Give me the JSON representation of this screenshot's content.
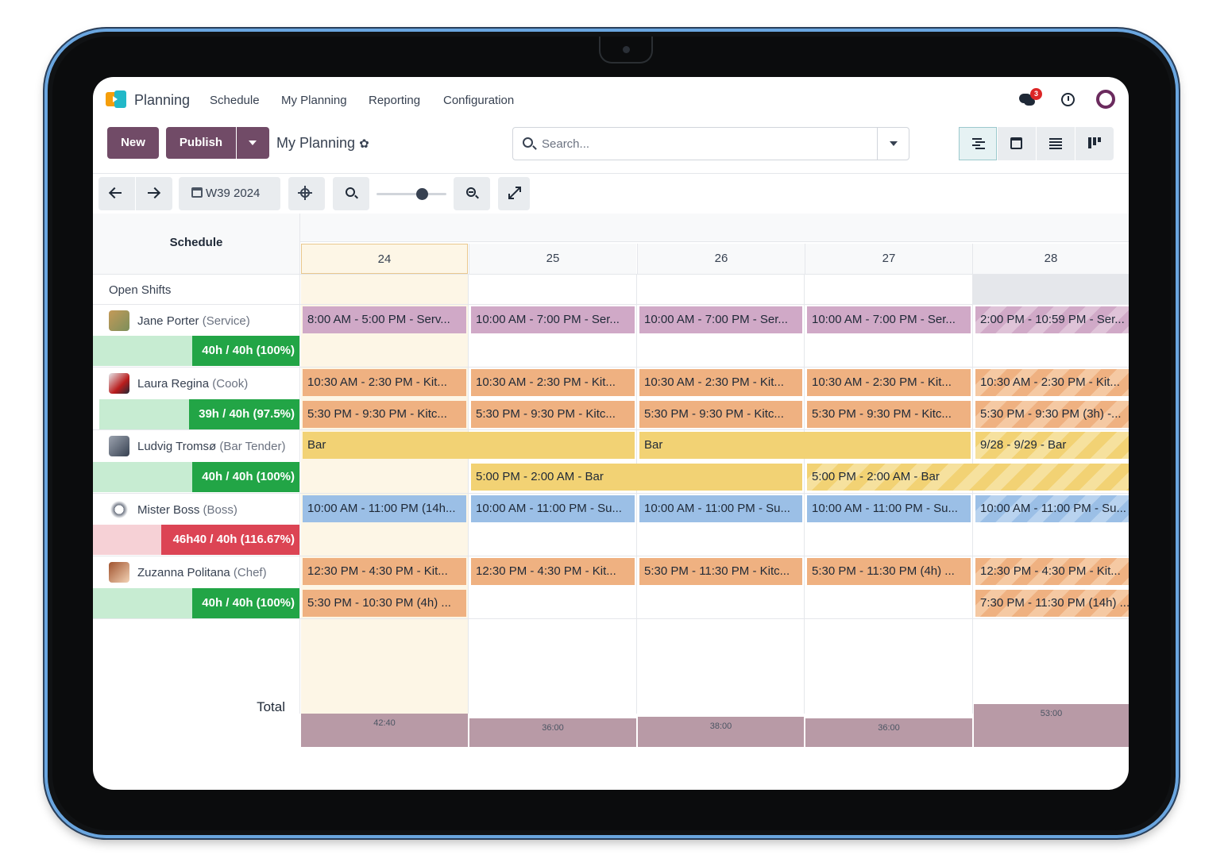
{
  "navbar": {
    "app_title": "Planning",
    "menu": [
      "Schedule",
      "My Planning",
      "Reporting",
      "Configuration"
    ],
    "chat_badge": "3"
  },
  "controls": {
    "new_label": "New",
    "publish_label": "Publish",
    "page_title": "My Planning",
    "search_placeholder": "Search..."
  },
  "toolbar": {
    "week_label": "W39 2024",
    "zoom_level": 0.6
  },
  "gantt": {
    "schedule_header": "Schedule",
    "days": [
      "24",
      "25",
      "26",
      "27",
      "28"
    ],
    "open_shifts_label": "Open Shifts",
    "total_label": "Total",
    "totals": [
      "42:40",
      "36:00",
      "38:00",
      "36:00",
      "53:00"
    ],
    "people": [
      {
        "name": "Jane Porter",
        "role": "(Service)",
        "hours": "40h / 40h (100%)",
        "status_color": "#22a546",
        "shifts_row1": [
          "8:00 AM - 5:00 PM - Serv...",
          "10:00 AM - 7:00 PM - Ser...",
          "10:00 AM - 7:00 PM - Ser...",
          "10:00 AM - 7:00 PM - Ser...",
          "2:00 PM - 10:59 PM - Ser..."
        ]
      },
      {
        "name": "Laura Regina",
        "role": "(Cook)",
        "hours": "39h / 40h (97.5%)",
        "status_color": "#22a546",
        "shifts_row1": [
          "10:30 AM - 2:30 PM - Kit...",
          "10:30 AM - 2:30 PM - Kit...",
          "10:30 AM - 2:30 PM - Kit...",
          "10:30 AM - 2:30 PM - Kit...",
          "10:30 AM - 2:30 PM - Kit..."
        ],
        "shifts_row2": [
          "5:30 PM - 9:30 PM - Kitc...",
          "5:30 PM - 9:30 PM - Kitc...",
          "5:30 PM - 9:30 PM - Kitc...",
          "5:30 PM - 9:30 PM - Kitc...",
          "5:30 PM - 9:30 PM (3h) -..."
        ]
      },
      {
        "name": "Ludvig Tromsø",
        "role": "(Bar Tender)",
        "hours": "40h / 40h (100%)",
        "status_color": "#22a546",
        "bar_row1": [
          "Bar",
          "Bar",
          "9/28 - 9/29 - Bar"
        ],
        "bar_row2": [
          "5:00 PM - 2:00 AM - Bar",
          "5:00 PM - 2:00 AM - Bar"
        ]
      },
      {
        "name": "Mister Boss",
        "role": "(Boss)",
        "hours": "46h40 / 40h (116.67%)",
        "status_color": "#dc4454",
        "shifts_row1": [
          "10:00 AM - 11:00 PM (14h...",
          "10:00 AM - 11:00 PM - Su...",
          "10:00 AM - 11:00 PM - Su...",
          "10:00 AM - 11:00 PM - Su...",
          "10:00 AM - 11:00 PM - Su..."
        ]
      },
      {
        "name": "Zuzanna Politana",
        "role": "(Chef)",
        "hours": "40h / 40h (100%)",
        "status_color": "#22a546",
        "shifts_row1": [
          "12:30 PM - 4:30 PM - Kit...",
          "12:30 PM - 4:30 PM - Kit...",
          "5:30 PM - 11:30 PM - Kitc...",
          "5:30 PM - 11:30 PM (4h) ...",
          "12:30 PM - 4:30 PM - Kit..."
        ],
        "shifts_row2": [
          "5:30 PM - 10:30 PM (4h) ...",
          "7:30 PM - 11:30 PM (14h) ..."
        ]
      }
    ]
  },
  "colors": {
    "brand": "#714b67",
    "shift_purple": "#d0a9c7",
    "shift_orange": "#efb181",
    "shift_yellow": "#f2d274",
    "shift_blue": "#9bbfe6",
    "today_bg": "#fdf6e6"
  },
  "icons": [
    "app-logo",
    "chat-icon",
    "clock-icon",
    "user-avatar",
    "gear-icon",
    "search-icon",
    "chevron-down-icon",
    "gantt-view-icon",
    "calendar-view-icon",
    "list-view-icon",
    "kanban-view-icon",
    "arrow-left-icon",
    "arrow-right-icon",
    "calendar-icon",
    "target-icon",
    "zoom-out-icon",
    "zoom-in-icon",
    "expand-icon"
  ]
}
